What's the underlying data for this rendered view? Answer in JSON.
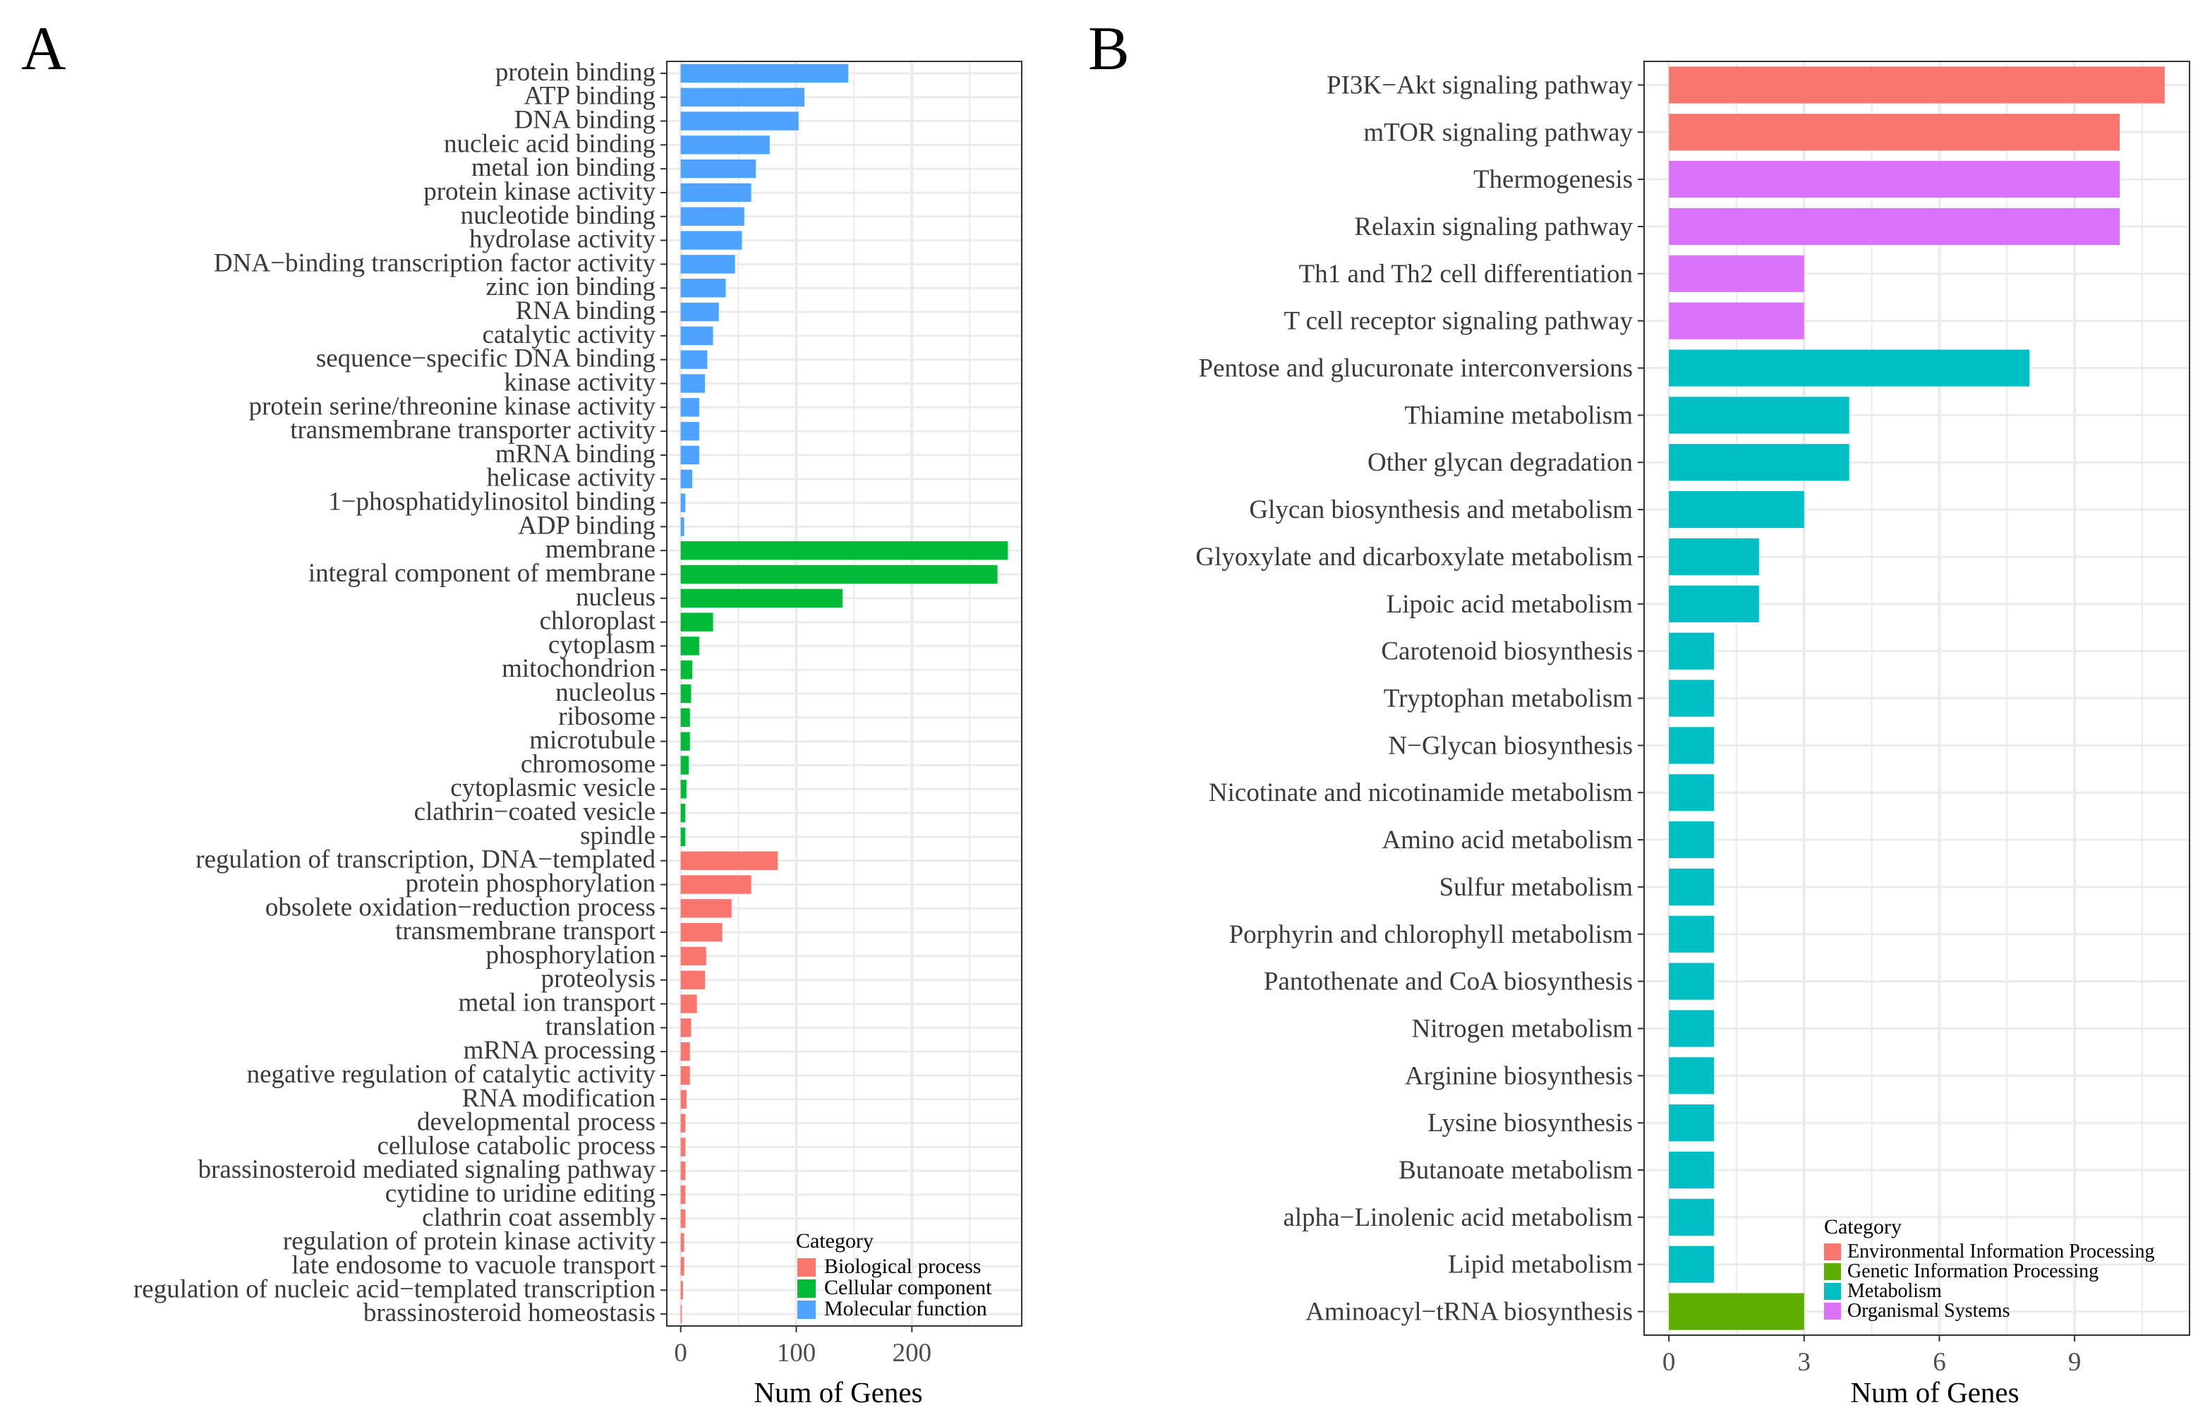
{
  "chart_data": [
    {
      "panel": "A",
      "type": "bar",
      "orientation": "horizontal",
      "xlabel": "Num of Genes",
      "ylabel": "",
      "xlim": [
        -12,
        295
      ],
      "xticks": [
        0,
        100,
        200
      ],
      "grid": true,
      "legend": {
        "title": "Category",
        "placement": "bottom-right",
        "entries": [
          {
            "name": "Biological process",
            "color": "#F8766D"
          },
          {
            "name": "Cellular component",
            "color": "#00BA38"
          },
          {
            "name": "Molecular function",
            "color": "#4DA3FF"
          }
        ]
      },
      "categories": [
        "protein binding",
        "ATP binding",
        "DNA binding",
        "nucleic acid binding",
        "metal ion binding",
        "protein kinase activity",
        "nucleotide binding",
        "hydrolase activity",
        "DNA−binding transcription factor activity",
        "zinc ion binding",
        "RNA binding",
        "catalytic activity",
        "sequence−specific DNA binding",
        "kinase activity",
        "protein serine/threonine kinase activity",
        "transmembrane transporter activity",
        "mRNA binding",
        "helicase activity",
        "1−phosphatidylinositol binding",
        "ADP binding",
        "membrane",
        "integral component of membrane",
        "nucleus",
        "chloroplast",
        "cytoplasm",
        "mitochondrion",
        "nucleolus",
        "ribosome",
        "microtubule",
        "chromosome",
        "cytoplasmic vesicle",
        "clathrin−coated vesicle",
        "spindle",
        "regulation of transcription, DNA−templated",
        "protein phosphorylation",
        "obsolete oxidation−reduction process",
        "transmembrane transport",
        "phosphorylation",
        "proteolysis",
        "metal ion transport",
        "translation",
        "mRNA processing",
        "negative regulation of catalytic activity",
        "RNA modification",
        "developmental process",
        "cellulose catabolic process",
        "brassinosteroid mediated signaling pathway",
        "cytidine to uridine editing",
        "clathrin coat assembly",
        "regulation of protein kinase activity",
        "late endosome to vacuole transport",
        "regulation of nucleic acid−templated transcription",
        "brassinosteroid homeostasis"
      ],
      "values": [
        145,
        107,
        102,
        77,
        65,
        61,
        55,
        53,
        47,
        39,
        33,
        28,
        23,
        21,
        16,
        16,
        16,
        10,
        4,
        3,
        283,
        274,
        140,
        28,
        16,
        10,
        9,
        8,
        8,
        7,
        5,
        4,
        4,
        84,
        61,
        44,
        36,
        22,
        21,
        14,
        9,
        8,
        8,
        5,
        4,
        4,
        4,
        4,
        4,
        3,
        3,
        2,
        1
      ],
      "groups": [
        "Molecular function",
        "Molecular function",
        "Molecular function",
        "Molecular function",
        "Molecular function",
        "Molecular function",
        "Molecular function",
        "Molecular function",
        "Molecular function",
        "Molecular function",
        "Molecular function",
        "Molecular function",
        "Molecular function",
        "Molecular function",
        "Molecular function",
        "Molecular function",
        "Molecular function",
        "Molecular function",
        "Molecular function",
        "Molecular function",
        "Cellular component",
        "Cellular component",
        "Cellular component",
        "Cellular component",
        "Cellular component",
        "Cellular component",
        "Cellular component",
        "Cellular component",
        "Cellular component",
        "Cellular component",
        "Cellular component",
        "Cellular component",
        "Cellular component",
        "Biological process",
        "Biological process",
        "Biological process",
        "Biological process",
        "Biological process",
        "Biological process",
        "Biological process",
        "Biological process",
        "Biological process",
        "Biological process",
        "Biological process",
        "Biological process",
        "Biological process",
        "Biological process",
        "Biological process",
        "Biological process",
        "Biological process",
        "Biological process",
        "Biological process",
        "Biological process"
      ]
    },
    {
      "panel": "B",
      "type": "bar",
      "orientation": "horizontal",
      "xlabel": "Num of Genes",
      "ylabel": "",
      "xlim": [
        -0.55,
        11.55
      ],
      "xticks": [
        0,
        3,
        6,
        9
      ],
      "grid": true,
      "legend": {
        "title": "Category",
        "placement": "bottom-right",
        "entries": [
          {
            "name": "Environmental Information Processing",
            "color": "#F8766D"
          },
          {
            "name": "Genetic Information Processing",
            "color": "#5EAE00"
          },
          {
            "name": "Metabolism",
            "color": "#00BFC4"
          },
          {
            "name": "Organismal Systems",
            "color": "#DB72FB"
          }
        ]
      },
      "categories": [
        "PI3K−Akt signaling pathway",
        "mTOR signaling pathway",
        "Thermogenesis",
        "Relaxin signaling pathway",
        "Th1 and Th2 cell differentiation",
        "T cell receptor signaling pathway",
        "Pentose and glucuronate interconversions",
        "Thiamine metabolism",
        "Other glycan degradation",
        "Glycan biosynthesis and metabolism",
        "Glyoxylate and dicarboxylate metabolism",
        "Lipoic acid metabolism",
        "Carotenoid biosynthesis",
        "Tryptophan metabolism",
        "N−Glycan biosynthesis",
        "Nicotinate and nicotinamide metabolism",
        "Amino acid metabolism",
        "Sulfur metabolism",
        "Porphyrin and chlorophyll metabolism",
        "Pantothenate and CoA biosynthesis",
        "Nitrogen metabolism",
        "Arginine biosynthesis",
        "Lysine biosynthesis",
        "Butanoate metabolism",
        "alpha−Linolenic acid metabolism",
        "Lipid metabolism",
        "Aminoacyl−tRNA biosynthesis"
      ],
      "values": [
        11,
        10,
        10,
        10,
        3,
        3,
        8,
        4,
        4,
        3,
        2,
        2,
        1,
        1,
        1,
        1,
        1,
        1,
        1,
        1,
        1,
        1,
        1,
        1,
        1,
        1,
        3
      ],
      "groups": [
        "Environmental Information Processing",
        "Environmental Information Processing",
        "Organismal Systems",
        "Organismal Systems",
        "Organismal Systems",
        "Organismal Systems",
        "Metabolism",
        "Metabolism",
        "Metabolism",
        "Metabolism",
        "Metabolism",
        "Metabolism",
        "Metabolism",
        "Metabolism",
        "Metabolism",
        "Metabolism",
        "Metabolism",
        "Metabolism",
        "Metabolism",
        "Metabolism",
        "Metabolism",
        "Metabolism",
        "Metabolism",
        "Metabolism",
        "Metabolism",
        "Metabolism",
        "Genetic Information Processing"
      ]
    }
  ]
}
